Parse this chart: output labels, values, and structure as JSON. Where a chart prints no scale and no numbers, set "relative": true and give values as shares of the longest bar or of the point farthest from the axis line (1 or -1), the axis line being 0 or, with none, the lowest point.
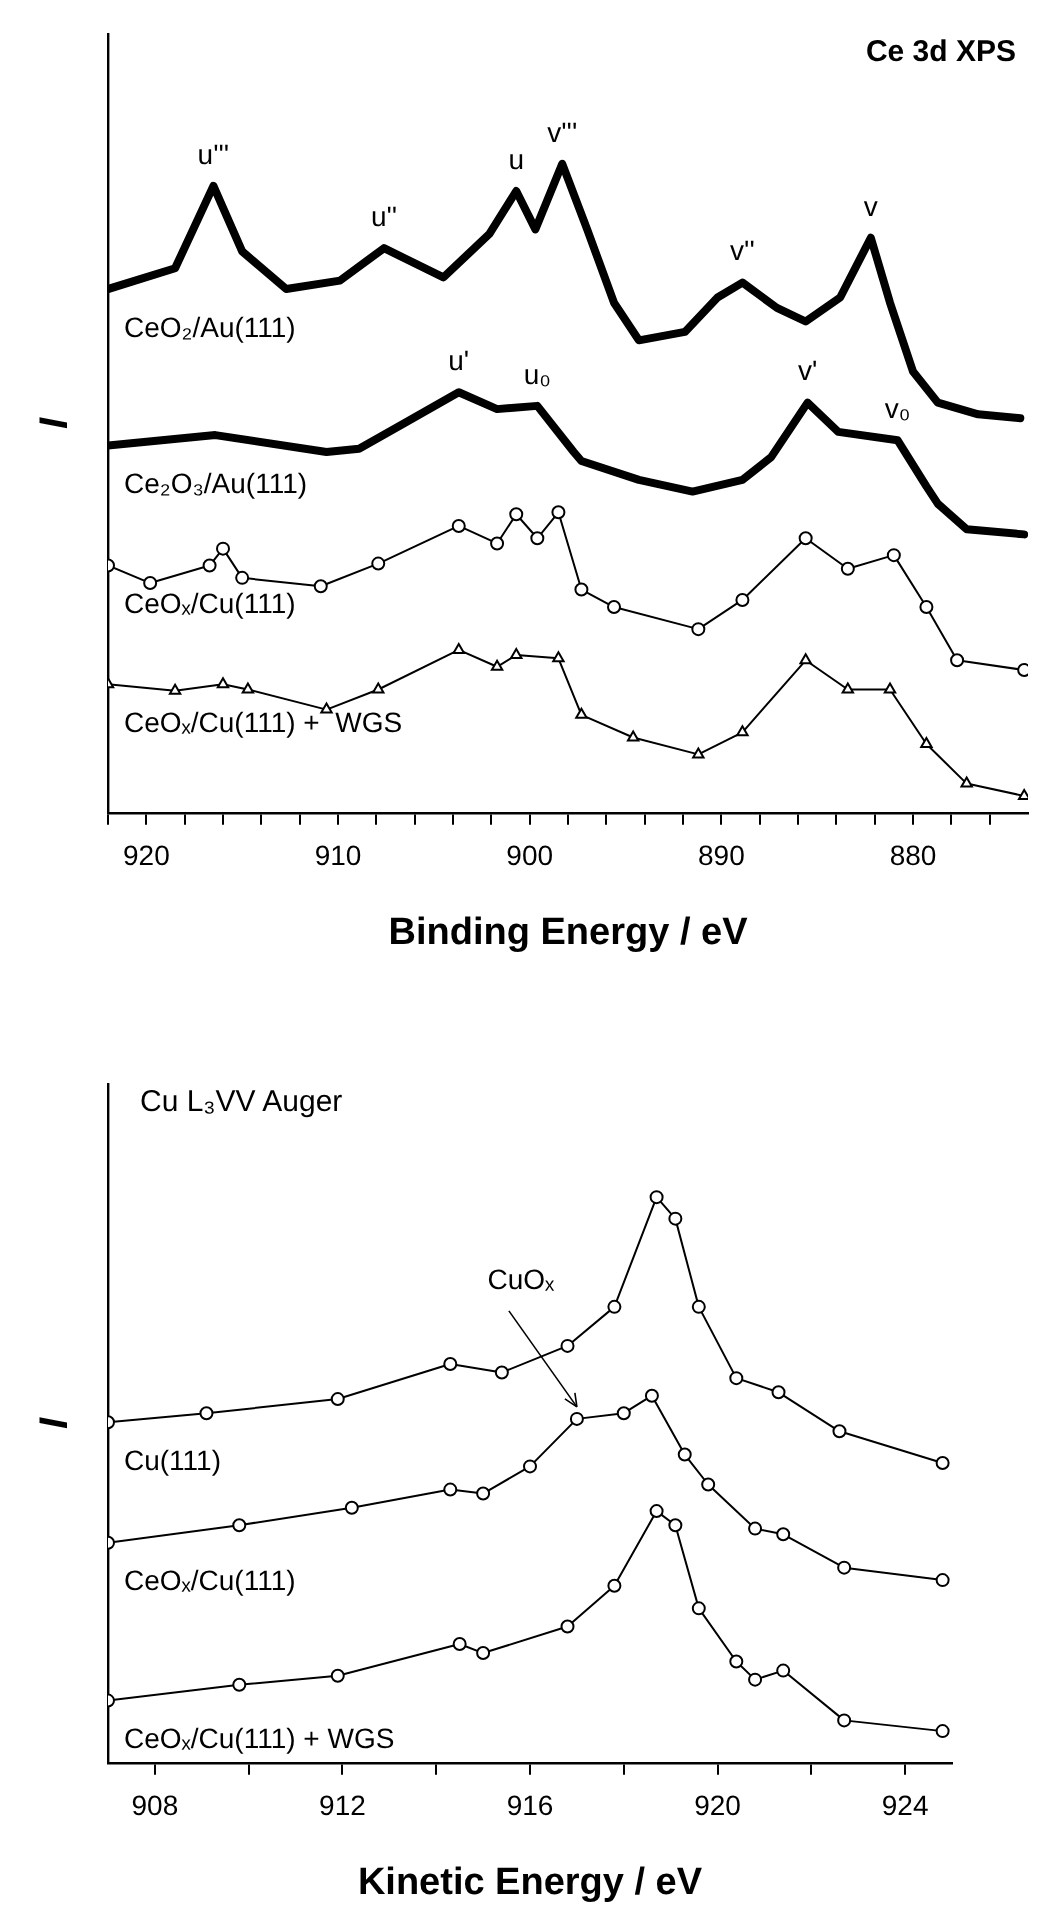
{
  "chart_data": [
    {
      "type": "line",
      "title": "Ce 3d XPS",
      "xlabel": "Binding Energy / eV",
      "ylabel": "I",
      "relative": true,
      "legend": false,
      "grid": false,
      "xlim": [
        922,
        874
      ],
      "xticks": [
        {
          "value": 922,
          "label": null
        },
        920,
        {
          "value": 918,
          "label": null
        },
        {
          "value": 916,
          "label": null
        },
        {
          "value": 914,
          "label": null
        },
        {
          "value": 912,
          "label": null
        },
        910,
        {
          "value": 908,
          "label": null
        },
        {
          "value": 906,
          "label": null
        },
        {
          "value": 904,
          "label": null
        },
        {
          "value": 902,
          "label": null
        },
        900,
        {
          "value": 898,
          "label": null
        },
        {
          "value": 896,
          "label": null
        },
        {
          "value": 894,
          "label": null
        },
        {
          "value": 892,
          "label": null
        },
        890,
        {
          "value": 888,
          "label": null
        },
        {
          "value": 886,
          "label": null
        },
        {
          "value": 884,
          "label": null
        },
        {
          "value": 882,
          "label": null
        },
        880,
        {
          "value": 878,
          "label": null
        },
        {
          "value": 876,
          "label": null
        }
      ],
      "series": [
        {
          "name": "CeO₂/Au(111)",
          "color": "#000000",
          "marker": "none",
          "x": [
            922,
            918.5,
            916.5,
            915,
            912.7,
            909.9,
            907.6,
            904.5,
            902.1,
            900.7,
            899.7,
            898.3,
            897.0,
            895.6,
            894.3,
            891.9,
            890.2,
            888.9,
            887.1,
            885.6,
            883.8,
            882.2,
            881.2,
            880.0,
            878.7,
            876.6,
            874.4
          ],
          "values": [
            0.807,
            0.839,
            0.966,
            0.865,
            0.807,
            0.82,
            0.87,
            0.825,
            0.892,
            0.958,
            0.899,
            1.0,
            0.899,
            0.786,
            0.728,
            0.741,
            0.794,
            0.817,
            0.778,
            0.757,
            0.794,
            0.886,
            0.786,
            0.68,
            0.632,
            0.614,
            0.608
          ]
        },
        {
          "name": "Ce₂O₃/Au(111)",
          "color": "#000000",
          "marker": "none",
          "x": [
            922,
            916.4,
            910.6,
            908.9,
            906.5,
            903.7,
            901.7,
            899.6,
            897.7,
            897.3,
            894.3,
            891.5,
            888.9,
            887.4,
            885.5,
            883.9,
            880.8,
            879.3,
            878.7,
            877.2,
            874.2
          ],
          "values": [
            0.566,
            0.582,
            0.556,
            0.561,
            0.601,
            0.648,
            0.622,
            0.627,
            0.556,
            0.542,
            0.513,
            0.495,
            0.513,
            0.548,
            0.632,
            0.587,
            0.574,
            0.503,
            0.476,
            0.437,
            0.429
          ]
        },
        {
          "name": "CeOₓ/Cu(111)",
          "color": "#000000",
          "marker": "circle",
          "x": [
            922,
            919.8,
            916.7,
            916.0,
            915.0,
            910.9,
            907.9,
            903.7,
            901.7,
            900.7,
            899.6,
            898.5,
            897.3,
            895.6,
            891.2,
            888.9,
            885.6,
            883.4,
            881.0,
            879.3,
            877.7,
            874.2
          ],
          "values": [
            0.381,
            0.354,
            0.381,
            0.407,
            0.362,
            0.349,
            0.384,
            0.442,
            0.415,
            0.46,
            0.423,
            0.463,
            0.344,
            0.317,
            0.283,
            0.328,
            0.423,
            0.376,
            0.397,
            0.317,
            0.235,
            0.22
          ]
        },
        {
          "name": "CeOₓ/Cu(111) +  WGS",
          "color": "#000000",
          "marker": "triangle",
          "x": [
            922,
            918.5,
            916.0,
            914.7,
            910.6,
            907.9,
            903.7,
            901.7,
            900.7,
            898.5,
            897.3,
            894.6,
            891.2,
            888.9,
            885.6,
            883.4,
            881.2,
            879.3,
            877.2,
            874.2
          ],
          "values": [
            0.198,
            0.188,
            0.198,
            0.19,
            0.159,
            0.19,
            0.251,
            0.225,
            0.243,
            0.238,
            0.151,
            0.116,
            0.09,
            0.124,
            0.235,
            0.19,
            0.19,
            0.106,
            0.045,
            0.026
          ]
        }
      ],
      "annotations": [
        {
          "text": "u'''",
          "x": 916.5,
          "y": 0.966
        },
        {
          "text": "u''",
          "x": 907.6,
          "y": 0.87
        },
        {
          "text": "u",
          "x": 900.7,
          "y": 0.958
        },
        {
          "text": "v'''",
          "x": 898.3,
          "y": 1.0
        },
        {
          "text": "v''",
          "x": 888.9,
          "y": 0.817
        },
        {
          "text": "v",
          "x": 882.2,
          "y": 0.886
        },
        {
          "text": "u'",
          "x": 903.7,
          "y": 0.648
        },
        {
          "text": "u₀",
          "x": 899.6,
          "y": 0.627
        },
        {
          "text": "v'",
          "x": 885.5,
          "y": 0.632
        },
        {
          "text": "v₀",
          "x": 880.8,
          "y": 0.574
        }
      ]
    },
    {
      "type": "line",
      "title": "Cu L₃VV Auger",
      "xlabel": "Kinetic Energy / eV",
      "ylabel": "I",
      "relative": true,
      "legend": false,
      "grid": false,
      "marker": "circle",
      "xlim": [
        907,
        925
      ],
      "xticks": [
        908,
        {
          "value": 910,
          "label": null
        },
        912,
        {
          "value": 914,
          "label": null
        },
        916,
        {
          "value": 918,
          "label": null
        },
        920,
        {
          "value": 922,
          "label": null
        },
        924
      ],
      "series": [
        {
          "name": "Cu(111)",
          "color": "#000000",
          "x": [
            907.0,
            909.1,
            911.9,
            914.3,
            915.4,
            916.8,
            917.8,
            918.7,
            919.1,
            919.6,
            920.4,
            921.3,
            922.6,
            924.8
          ],
          "values": [
            0.602,
            0.618,
            0.643,
            0.705,
            0.69,
            0.737,
            0.806,
            1.0,
            0.962,
            0.806,
            0.68,
            0.655,
            0.586,
            0.53
          ]
        },
        {
          "name": "CeOₓ/Cu(111)",
          "color": "#000000",
          "x": [
            907.0,
            909.8,
            912.2,
            914.3,
            915.0,
            916.0,
            917.0,
            918.0,
            918.6,
            919.3,
            919.8,
            920.8,
            921.4,
            922.7,
            924.8
          ],
          "values": [
            0.389,
            0.42,
            0.451,
            0.483,
            0.476,
            0.524,
            0.608,
            0.618,
            0.649,
            0.545,
            0.492,
            0.414,
            0.404,
            0.345,
            0.323
          ]
        },
        {
          "name": "CeOₓ/Cu(111) + WGS",
          "color": "#000000",
          "x": [
            907.0,
            909.8,
            911.9,
            914.5,
            915.0,
            916.8,
            917.8,
            918.7,
            919.1,
            919.6,
            920.4,
            920.8,
            921.4,
            922.7,
            924.8
          ],
          "values": [
            0.11,
            0.138,
            0.154,
            0.21,
            0.194,
            0.241,
            0.313,
            0.445,
            0.42,
            0.273,
            0.179,
            0.147,
            0.163,
            0.075,
            0.056
          ]
        }
      ],
      "annotations": [
        {
          "text": "CuOₓ",
          "x": 917.0,
          "y": 0.608
        }
      ]
    }
  ]
}
